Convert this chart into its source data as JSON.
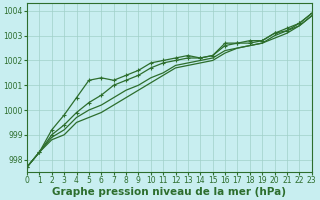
{
  "title": "Graphe pression niveau de la mer (hPa)",
  "background_color": "#c8eef0",
  "grid_color": "#a0d0c8",
  "line_color": "#2d6e2d",
  "xlim": [
    0,
    23
  ],
  "ylim": [
    997.5,
    1004.3
  ],
  "yticks": [
    998,
    999,
    1000,
    1001,
    1002,
    1003,
    1004
  ],
  "xticks": [
    0,
    1,
    2,
    3,
    4,
    5,
    6,
    7,
    8,
    9,
    10,
    11,
    12,
    13,
    14,
    15,
    16,
    17,
    18,
    19,
    20,
    21,
    22,
    23
  ],
  "series": [
    {
      "y": [
        997.7,
        998.3,
        998.8,
        999.0,
        999.5,
        999.7,
        999.9,
        1000.2,
        1000.5,
        1000.8,
        1001.1,
        1001.4,
        1001.7,
        1001.8,
        1001.9,
        1002.0,
        1002.3,
        1002.5,
        1002.6,
        1002.7,
        1002.9,
        1003.1,
        1003.4,
        1003.8
      ],
      "marker": false,
      "linewidth": 0.9
    },
    {
      "y": [
        997.7,
        998.3,
        998.9,
        999.2,
        999.7,
        1000.0,
        1000.2,
        1000.5,
        1000.8,
        1001.0,
        1001.3,
        1001.5,
        1001.8,
        1001.9,
        1002.0,
        1002.1,
        1002.4,
        1002.5,
        1002.6,
        1002.7,
        1003.0,
        1003.2,
        1003.4,
        1003.8
      ],
      "marker": false,
      "linewidth": 0.9
    },
    {
      "y": [
        997.7,
        998.3,
        999.0,
        999.4,
        999.9,
        1000.3,
        1000.6,
        1001.0,
        1001.2,
        1001.4,
        1001.7,
        1001.9,
        1002.0,
        1002.1,
        1002.1,
        1002.2,
        1002.6,
        1002.7,
        1002.7,
        1002.8,
        1003.1,
        1003.2,
        1003.5,
        1003.9
      ],
      "marker": true,
      "linewidth": 0.9
    },
    {
      "y": [
        997.7,
        998.3,
        999.2,
        999.8,
        1000.5,
        1001.2,
        1001.3,
        1001.2,
        1001.4,
        1001.6,
        1001.9,
        1002.0,
        1002.1,
        1002.2,
        1002.1,
        1002.2,
        1002.7,
        1002.7,
        1002.8,
        1002.8,
        1003.1,
        1003.3,
        1003.5,
        1003.9
      ],
      "marker": true,
      "linewidth": 0.9
    }
  ],
  "title_color": "#2d6e2d",
  "title_fontsize": 7.5,
  "tick_fontsize": 5.5,
  "tick_color": "#2d6e2d",
  "spine_color": "#2d6e2d"
}
